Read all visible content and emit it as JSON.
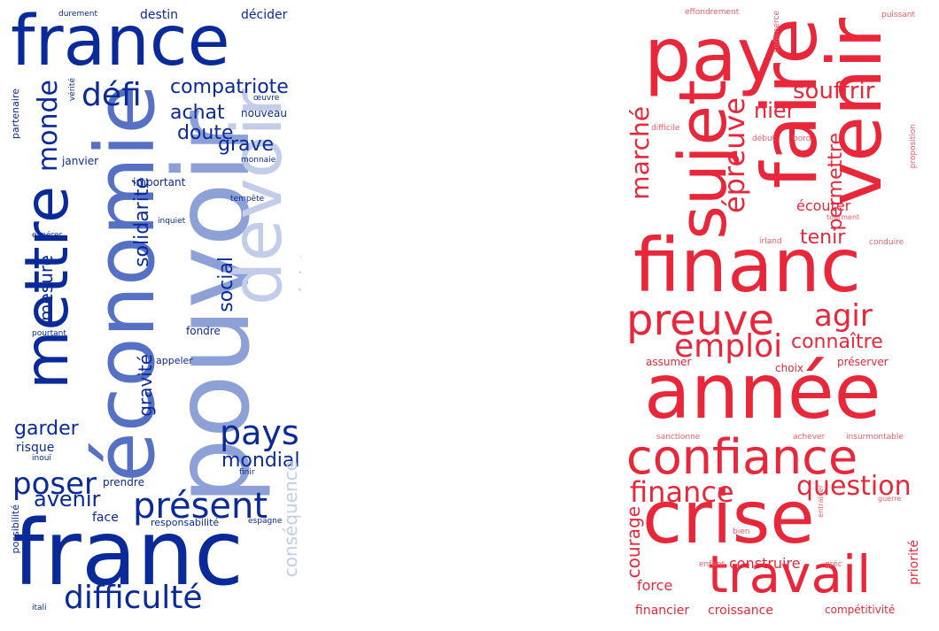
{
  "left_cloud": {
    "colors": {
      "dark": "#0a2a99",
      "mid": "#5670c4",
      "soft": "#8ea1d6",
      "pale": "#c3cdea"
    },
    "words": [
      {
        "id": "france",
        "text": "france",
        "tone": "dark",
        "o": "h"
      },
      {
        "id": "franc",
        "text": "franc",
        "tone": "dark",
        "o": "h"
      },
      {
        "id": "pouvoir",
        "text": "pouvoir",
        "tone": "soft",
        "o": "v"
      },
      {
        "id": "economie",
        "text": "économie",
        "tone": "mid",
        "o": "v"
      },
      {
        "id": "devoir",
        "text": "devoir",
        "tone": "pale",
        "o": "v"
      },
      {
        "id": "mettre",
        "text": "mettre",
        "tone": "dark",
        "o": "v"
      },
      {
        "id": "difficulte",
        "text": "difficulté",
        "tone": "dark",
        "o": "h"
      },
      {
        "id": "present",
        "text": "présent",
        "tone": "dark",
        "o": "h"
      },
      {
        "id": "defi",
        "text": "défi",
        "tone": "dark",
        "o": "h"
      },
      {
        "id": "pays",
        "text": "pays",
        "tone": "dark",
        "o": "h"
      },
      {
        "id": "monde",
        "text": "monde",
        "tone": "dark",
        "o": "v"
      },
      {
        "id": "compatriote",
        "text": "compatriote",
        "tone": "dark",
        "o": "h"
      },
      {
        "id": "poser",
        "text": "poser",
        "tone": "dark",
        "o": "h"
      },
      {
        "id": "mondial",
        "text": "mondial",
        "tone": "dark",
        "o": "h"
      },
      {
        "id": "garder",
        "text": "garder",
        "tone": "dark",
        "o": "h"
      },
      {
        "id": "avenir",
        "text": "avenir",
        "tone": "dark",
        "o": "h"
      },
      {
        "id": "achat",
        "text": "achat",
        "tone": "dark",
        "o": "h"
      },
      {
        "id": "doute",
        "text": "doute",
        "tone": "dark",
        "o": "h"
      },
      {
        "id": "grave",
        "text": "grave",
        "tone": "dark",
        "o": "h"
      },
      {
        "id": "social",
        "text": "social",
        "tone": "dark",
        "o": "v"
      },
      {
        "id": "solidarite",
        "text": "solidarité",
        "tone": "dark",
        "o": "v"
      },
      {
        "id": "gravite",
        "text": "gravité",
        "tone": "dark",
        "o": "v"
      },
      {
        "id": "mesure",
        "text": "mesure",
        "tone": "dark",
        "o": "v"
      },
      {
        "id": "resister",
        "text": "résister",
        "tone": "pale",
        "o": "v"
      },
      {
        "id": "consequence",
        "text": "conséquence",
        "tone": "pale",
        "o": "v"
      },
      {
        "id": "destin",
        "text": "destin",
        "tone": "dark",
        "o": "h"
      },
      {
        "id": "decider",
        "text": "décider",
        "tone": "dark",
        "o": "h"
      },
      {
        "id": "nouveau",
        "text": "nouveau",
        "tone": "dark",
        "o": "h"
      },
      {
        "id": "important",
        "text": "important",
        "tone": "dark",
        "o": "h"
      },
      {
        "id": "janvier",
        "text": "janvier",
        "tone": "dark",
        "o": "h"
      },
      {
        "id": "risque",
        "text": "risque",
        "tone": "dark",
        "o": "h"
      },
      {
        "id": "prendre",
        "text": "prendre",
        "tone": "dark",
        "o": "h"
      },
      {
        "id": "face",
        "text": "face",
        "tone": "dark",
        "o": "h"
      },
      {
        "id": "fondre",
        "text": "fondre",
        "tone": "dark",
        "o": "h"
      },
      {
        "id": "appeler",
        "text": "appeler",
        "tone": "dark",
        "o": "h"
      },
      {
        "id": "responsabilite",
        "text": "responsabilité",
        "tone": "dark",
        "o": "h"
      },
      {
        "id": "espagne",
        "text": "espagne",
        "tone": "dark",
        "o": "h"
      },
      {
        "id": "partenaire",
        "text": "partenaire",
        "tone": "dark",
        "o": "v"
      },
      {
        "id": "possibilite",
        "text": "possibilité",
        "tone": "dark",
        "o": "v"
      },
      {
        "id": "durement",
        "text": "durement",
        "tone": "dark",
        "o": "h"
      },
      {
        "id": "verite",
        "text": "vérité",
        "tone": "dark",
        "o": "v"
      },
      {
        "id": "oeuvre",
        "text": "œuvre",
        "tone": "dark",
        "o": "h"
      },
      {
        "id": "monnaie",
        "text": "monnaie",
        "tone": "dark",
        "o": "h"
      },
      {
        "id": "tempete",
        "text": "tempête",
        "tone": "dark",
        "o": "h"
      },
      {
        "id": "inquiet",
        "text": "inquiet",
        "tone": "dark",
        "o": "h"
      },
      {
        "id": "esperer",
        "text": "espérer",
        "tone": "dark",
        "o": "h"
      },
      {
        "id": "pourtant",
        "text": "pourtant",
        "tone": "dark",
        "o": "h"
      },
      {
        "id": "inoui",
        "text": "inouï",
        "tone": "dark",
        "o": "h"
      },
      {
        "id": "finir",
        "text": "finir",
        "tone": "dark",
        "o": "h"
      },
      {
        "id": "itali",
        "text": "itali",
        "tone": "dark",
        "o": "h"
      }
    ]
  },
  "right_cloud": {
    "colors": {
      "red": "#e8283a",
      "light": "#ee5c6a"
    },
    "words": [
      {
        "id": "annee",
        "text": "année",
        "tone": "red",
        "o": "h"
      },
      {
        "id": "crise",
        "text": "crise",
        "tone": "red",
        "o": "h"
      },
      {
        "id": "financ",
        "text": "financ",
        "tone": "red",
        "o": "h"
      },
      {
        "id": "confiance",
        "text": "confiance",
        "tone": "red",
        "o": "h"
      },
      {
        "id": "travail",
        "text": "travail",
        "tone": "red",
        "o": "h"
      },
      {
        "id": "pay",
        "text": "pay",
        "tone": "red",
        "o": "h"
      },
      {
        "id": "faire",
        "text": "faire",
        "tone": "red",
        "o": "v"
      },
      {
        "id": "venir",
        "text": "venir",
        "tone": "red",
        "o": "v"
      },
      {
        "id": "sujet",
        "text": "sujet",
        "tone": "red",
        "o": "v"
      },
      {
        "id": "preuve",
        "text": "preuve",
        "tone": "red",
        "o": "h"
      },
      {
        "id": "agir",
        "text": "agir",
        "tone": "red",
        "o": "h"
      },
      {
        "id": "emploi",
        "text": "emploi",
        "tone": "red",
        "o": "h"
      },
      {
        "id": "finance",
        "text": "finance",
        "tone": "red",
        "o": "h"
      },
      {
        "id": "question",
        "text": "question",
        "tone": "red",
        "o": "h"
      },
      {
        "id": "epreuve",
        "text": "épreuve",
        "tone": "red",
        "o": "v"
      },
      {
        "id": "marche",
        "text": "marché",
        "tone": "red",
        "o": "v"
      },
      {
        "id": "souffrir",
        "text": "souffrir",
        "tone": "red",
        "o": "h"
      },
      {
        "id": "nier",
        "text": "nier",
        "tone": "red",
        "o": "h"
      },
      {
        "id": "permettre",
        "text": "permettre",
        "tone": "red",
        "o": "v"
      },
      {
        "id": "tenir",
        "text": "tenir",
        "tone": "red",
        "o": "h"
      },
      {
        "id": "connaitre",
        "text": "connaître",
        "tone": "red",
        "o": "h"
      },
      {
        "id": "courage",
        "text": "courage",
        "tone": "red",
        "o": "v"
      },
      {
        "id": "construire",
        "text": "construire",
        "tone": "red",
        "o": "h"
      },
      {
        "id": "force",
        "text": "force",
        "tone": "red",
        "o": "h"
      },
      {
        "id": "financier",
        "text": "financier",
        "tone": "red",
        "o": "h"
      },
      {
        "id": "croissance",
        "text": "croissance",
        "tone": "red",
        "o": "h"
      },
      {
        "id": "competitivite",
        "text": "compétitivité",
        "tone": "red",
        "o": "h"
      },
      {
        "id": "priorite",
        "text": "priorité",
        "tone": "red",
        "o": "v"
      },
      {
        "id": "ecouter",
        "text": "écouter",
        "tone": "red",
        "o": "h"
      },
      {
        "id": "assumer",
        "text": "assumer",
        "tone": "red",
        "o": "h"
      },
      {
        "id": "choix",
        "text": "choix",
        "tone": "red",
        "o": "h"
      },
      {
        "id": "preserver",
        "text": "préserver",
        "tone": "red",
        "o": "h"
      },
      {
        "id": "effondrement",
        "text": "effondrement",
        "tone": "light",
        "o": "h"
      },
      {
        "id": "commerce",
        "text": "commerce",
        "tone": "light",
        "o": "v"
      },
      {
        "id": "puissant",
        "text": "puissant",
        "tone": "light",
        "o": "h"
      },
      {
        "id": "difficile",
        "text": "difficile",
        "tone": "light",
        "o": "h"
      },
      {
        "id": "debut",
        "text": "début",
        "tone": "light",
        "o": "h"
      },
      {
        "id": "bord",
        "text": "bord",
        "tone": "light",
        "o": "h"
      },
      {
        "id": "proposition",
        "text": "proposition",
        "tone": "light",
        "o": "v"
      },
      {
        "id": "tourment",
        "text": "tourment",
        "tone": "light",
        "o": "h"
      },
      {
        "id": "irland",
        "text": "irland",
        "tone": "light",
        "o": "h"
      },
      {
        "id": "conduire",
        "text": "conduire",
        "tone": "light",
        "o": "h"
      },
      {
        "id": "sanctionne",
        "text": "sanctionne",
        "tone": "light",
        "o": "h"
      },
      {
        "id": "achever",
        "text": "achever",
        "tone": "light",
        "o": "h"
      },
      {
        "id": "insurmontable",
        "text": "insurmontable",
        "tone": "light",
        "o": "h"
      },
      {
        "id": "entrainer",
        "text": "entraîner",
        "tone": "light",
        "o": "v"
      },
      {
        "id": "guerre",
        "text": "guerre",
        "tone": "light",
        "o": "h"
      },
      {
        "id": "bien",
        "text": "bien",
        "tone": "light",
        "o": "h"
      },
      {
        "id": "enfant",
        "text": "enfant",
        "tone": "light",
        "o": "h"
      },
      {
        "id": "grec",
        "text": "gréc",
        "tone": "light",
        "o": "h"
      }
    ]
  }
}
